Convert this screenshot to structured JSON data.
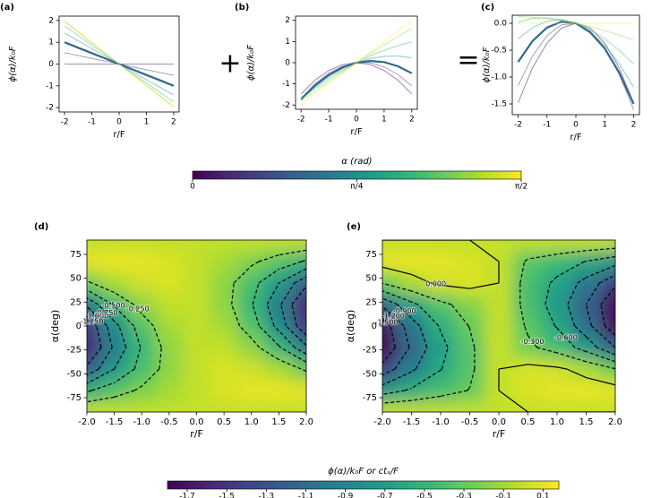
{
  "operators": [
    "+",
    "="
  ],
  "chart_data": [
    {
      "type": "line",
      "panel_label": "(a)",
      "x_label": "r/F",
      "y_label": "ϕ(α)/k₀F",
      "x": [
        -2,
        -1.5,
        -1,
        -0.5,
        0,
        0.5,
        1,
        1.5,
        2
      ],
      "xlim": [
        -2.2,
        2.2
      ],
      "xticks": [
        -2,
        -1,
        0,
        1,
        2
      ],
      "ylim": [
        -2.2,
        2.2
      ],
      "yticks": [
        -2,
        -1,
        0,
        1,
        2
      ],
      "series": [
        {
          "color": "#440154",
          "linewidth": 1,
          "values": [
            0,
            0,
            0,
            0,
            0,
            0,
            0,
            0,
            0
          ]
        },
        {
          "color": "#443983",
          "linewidth": 1,
          "values": [
            0.52,
            0.39,
            0.26,
            0.13,
            0,
            -0.13,
            -0.26,
            -0.39,
            -0.52
          ]
        },
        {
          "color": "#31688e",
          "linewidth": 2,
          "values": [
            1,
            0.75,
            0.5,
            0.25,
            0,
            -0.25,
            -0.5,
            -0.75,
            -1
          ]
        },
        {
          "color": "#21918c",
          "linewidth": 1,
          "values": [
            1.42,
            1.07,
            0.71,
            0.36,
            0,
            -0.36,
            -0.71,
            -1.07,
            -1.42
          ]
        },
        {
          "color": "#35b779",
          "linewidth": 1,
          "values": [
            1.74,
            1.31,
            0.87,
            0.44,
            0,
            -0.44,
            -0.87,
            -1.31,
            -1.74
          ]
        },
        {
          "color": "#90d743",
          "linewidth": 1,
          "values": [
            1.94,
            1.46,
            0.97,
            0.49,
            0,
            -0.49,
            -0.97,
            -1.46,
            -1.94
          ]
        },
        {
          "color": "#fde725",
          "linewidth": 1,
          "values": [
            2,
            1.5,
            1,
            0.5,
            0,
            -0.5,
            -1,
            -1.5,
            -2
          ]
        }
      ]
    },
    {
      "type": "line",
      "panel_label": "(b)",
      "x_label": "r/F",
      "y_label": "ϕ(α)/k₀F",
      "x": [
        -2,
        -1.5,
        -1,
        -0.5,
        0,
        0.5,
        1,
        1.5,
        2
      ],
      "xlim": [
        -2.2,
        2.2
      ],
      "xticks": [
        -2,
        -1,
        0,
        1,
        2
      ],
      "ylim": [
        -2.2,
        2.2
      ],
      "yticks": [
        -2,
        -1,
        0,
        1,
        2
      ],
      "series": [
        {
          "color": "#440154",
          "linewidth": 1,
          "values": [
            -1.48,
            -0.83,
            -0.37,
            -0.09,
            0,
            -0.09,
            -0.37,
            -0.83,
            -1.48
          ]
        },
        {
          "color": "#443983",
          "linewidth": 1,
          "values": [
            -1.68,
            -1.0,
            -0.49,
            -0.16,
            0,
            -0.01,
            -0.2,
            -0.56,
            -1.09
          ]
        },
        {
          "color": "#31688e",
          "linewidth": 2,
          "values": [
            -1.72,
            -1.08,
            -0.58,
            -0.22,
            0,
            0.08,
            0.03,
            -0.17,
            -0.5
          ]
        },
        {
          "color": "#21918c",
          "linewidth": 1,
          "values": [
            -1.71,
            -1.15,
            -0.67,
            -0.29,
            0,
            0.2,
            0.3,
            0.32,
            0.23
          ]
        },
        {
          "color": "#35b779",
          "linewidth": 1,
          "values": [
            -1.72,
            -1.22,
            -0.77,
            -0.37,
            0,
            0.32,
            0.58,
            0.81,
            0.98
          ]
        },
        {
          "color": "#90d743",
          "linewidth": 1,
          "values": [
            -1.81,
            -1.35,
            -0.88,
            -0.44,
            0,
            0.43,
            0.83,
            1.24,
            1.62
          ]
        },
        {
          "color": "#fde725",
          "linewidth": 1,
          "values": [
            -2,
            -1.5,
            -1,
            -0.5,
            0,
            0.5,
            1,
            1.5,
            2
          ]
        }
      ]
    },
    {
      "type": "line",
      "panel_label": "(c)",
      "x_label": "r/F",
      "y_label": "ϕ(α)/k₀F",
      "x": [
        -2,
        -1.5,
        -1,
        -0.5,
        0,
        0.5,
        1,
        1.5,
        2
      ],
      "xlim": [
        -2.2,
        2.2
      ],
      "xticks": [
        -2,
        -1,
        0,
        1,
        2
      ],
      "ylim": [
        -1.7,
        0.15
      ],
      "yticks": [
        {
          "value": -1.5,
          "label": "-1.5"
        },
        {
          "value": -1,
          "label": "-1.0"
        },
        {
          "value": -0.5,
          "label": "-0.5"
        },
        {
          "value": 0,
          "label": "0.0"
        }
      ],
      "series": [
        {
          "color": "#440154",
          "linewidth": 1,
          "values": [
            -1.48,
            -0.83,
            -0.37,
            -0.09,
            0,
            -0.09,
            -0.37,
            -0.83,
            -1.48
          ]
        },
        {
          "color": "#443983",
          "linewidth": 1,
          "values": [
            -1.16,
            -0.61,
            -0.23,
            -0.03,
            0,
            -0.14,
            -0.46,
            -0.95,
            -1.61
          ]
        },
        {
          "color": "#31688e",
          "linewidth": 2,
          "values": [
            -0.72,
            -0.33,
            -0.08,
            0.03,
            0,
            -0.17,
            -0.47,
            -0.92,
            -1.5
          ]
        },
        {
          "color": "#21918c",
          "linewidth": 1,
          "values": [
            -0.29,
            -0.08,
            0.04,
            0.07,
            0,
            -0.16,
            -0.41,
            -0.75,
            -1.19
          ]
        },
        {
          "color": "#35b779",
          "linewidth": 1,
          "values": [
            0.02,
            0.09,
            0.1,
            0.07,
            0,
            -0.12,
            -0.29,
            -0.5,
            -0.76
          ]
        },
        {
          "color": "#90d743",
          "linewidth": 1,
          "values": [
            0.13,
            0.11,
            0.09,
            0.05,
            0,
            -0.06,
            -0.14,
            -0.22,
            -0.32
          ]
        },
        {
          "color": "#fde725",
          "linewidth": 1,
          "values": [
            0,
            0,
            0,
            0,
            0,
            0,
            0,
            0,
            0
          ]
        }
      ]
    },
    {
      "type": "colorbar",
      "label": "α (rad)",
      "colormap": "viridis",
      "xlim": [
        0,
        1.571
      ],
      "xticks": [
        0,
        {
          "value": 0.785,
          "label": "π/4"
        },
        {
          "value": 1.571,
          "label": "π/2"
        }
      ]
    },
    {
      "type": "contour",
      "panel_label": "(d)",
      "x_label": "r/F",
      "y_label": "α(deg)",
      "colormap": "viridis",
      "zlim": [
        -1.8,
        0.18
      ],
      "x": [
        -2,
        -1.5,
        -1,
        -0.5,
        0,
        0.5,
        1,
        1.5,
        2
      ],
      "y": [
        -90,
        -67.5,
        -45,
        -22.5,
        0,
        22.5,
        45,
        67.5,
        90
      ],
      "xlim": [
        -2,
        2
      ],
      "ylim": [
        -90,
        90
      ],
      "xticks": [
        {
          "value": -2,
          "label": "-2.0"
        },
        {
          "value": -1.5,
          "label": "-1.5"
        },
        {
          "value": -1,
          "label": "-1.0"
        },
        {
          "value": -0.5,
          "label": "-0.5"
        },
        {
          "value": 0,
          "label": "0.0"
        },
        {
          "value": 0.5,
          "label": "0.5"
        },
        {
          "value": 1,
          "label": "1.0"
        },
        {
          "value": 1.5,
          "label": "1.5"
        },
        {
          "value": 2,
          "label": "2.0"
        }
      ],
      "yticks": [
        -75,
        -50,
        -25,
        0,
        25,
        50,
        75
      ],
      "z": [
        [
          0,
          0,
          0,
          0,
          0,
          0,
          0,
          0,
          0
        ],
        [
          -0.53,
          -0.36,
          -0.21,
          -0.09,
          0,
          0.07,
          0.11,
          0.12,
          0.1
        ],
        [
          -1.19,
          -0.75,
          -0.41,
          -0.16,
          0,
          0.07,
          0.04,
          -0.08,
          -0.29
        ],
        [
          -1.58,
          -0.95,
          -0.48,
          -0.16,
          0,
          0,
          -0.16,
          -0.47,
          -0.95
        ],
        [
          -1.48,
          -0.83,
          -0.37,
          -0.09,
          0,
          -0.09,
          -0.37,
          -0.83,
          -1.48
        ],
        [
          -0.95,
          -0.47,
          -0.16,
          0,
          0,
          -0.16,
          -0.48,
          -0.95,
          -1.58
        ],
        [
          -0.29,
          -0.08,
          0.04,
          0.07,
          0,
          -0.16,
          -0.41,
          -0.75,
          -1.19
        ],
        [
          0.1,
          0.12,
          0.11,
          0.07,
          0,
          -0.09,
          -0.21,
          -0.36,
          -0.53
        ],
        [
          0,
          0,
          0,
          0,
          0,
          0,
          0,
          0,
          0
        ]
      ],
      "contours": [
        {
          "value": -0.25,
          "label": "-0.250"
        },
        {
          "value": -0.5,
          "label": "-0.500"
        },
        {
          "value": -0.75,
          "label": "-0.750"
        },
        {
          "value": -1,
          "label": "-1.000"
        },
        {
          "value": -1.25,
          "label": "-1.250"
        }
      ]
    },
    {
      "type": "contour",
      "panel_label": "(e)",
      "x_label": "r/F",
      "y_label": "α(deg)",
      "colormap": "viridis",
      "zlim": [
        -1.8,
        0.18
      ],
      "x": [
        -2,
        -1.5,
        -1,
        -0.5,
        0,
        0.5,
        1,
        1.5,
        2
      ],
      "y": [
        -90,
        -67.5,
        -45,
        -22.5,
        0,
        22.5,
        45,
        67.5,
        90
      ],
      "xlim": [
        -2,
        2
      ],
      "ylim": [
        -90,
        90
      ],
      "xticks": [
        {
          "value": -2,
          "label": "-2.0"
        },
        {
          "value": -1.5,
          "label": "-1.5"
        },
        {
          "value": -1,
          "label": "-1.0"
        },
        {
          "value": -0.5,
          "label": "-0.5"
        },
        {
          "value": 0,
          "label": "0.0"
        },
        {
          "value": 0.5,
          "label": "0.5"
        },
        {
          "value": 1,
          "label": "1.0"
        },
        {
          "value": 1.5,
          "label": "1.5"
        },
        {
          "value": 2,
          "label": "2.0"
        }
      ],
      "yticks": [
        -75,
        -50,
        -25,
        0,
        25,
        50,
        75
      ],
      "z": [
        [
          0,
          0,
          0,
          0,
          0,
          0,
          0,
          0,
          0
        ],
        [
          -0.73,
          -0.56,
          -0.41,
          -0.29,
          0,
          0.07,
          0.11,
          0.12,
          0.1
        ],
        [
          -1.39,
          -0.95,
          -0.61,
          -0.36,
          0,
          0.07,
          0.04,
          -0.08,
          -0.29
        ],
        [
          -1.78,
          -1.15,
          -0.68,
          -0.36,
          0,
          -0.25,
          -0.41,
          -0.72,
          -1.2
        ],
        [
          -1.68,
          -1.03,
          -0.57,
          -0.29,
          0,
          -0.34,
          -0.62,
          -1.08,
          -1.73
        ],
        [
          -1.15,
          -0.67,
          -0.36,
          -0.2,
          0,
          -0.41,
          -0.73,
          -1.2,
          -1.79
        ],
        [
          -0.29,
          -0.08,
          0.04,
          0.07,
          0,
          -0.41,
          -0.66,
          -1.0,
          -1.44
        ],
        [
          0.1,
          0.12,
          0.11,
          0.07,
          0,
          -0.34,
          -0.46,
          -0.61,
          -0.78
        ],
        [
          0,
          0,
          0,
          0,
          0,
          0,
          0,
          0,
          0
        ]
      ],
      "contours": [
        {
          "value": 0,
          "label": "0.000"
        },
        {
          "value": -0.3,
          "label": "-0.300"
        },
        {
          "value": -0.6,
          "label": "-0.600"
        },
        {
          "value": -0.9,
          "label": "-0.900"
        },
        {
          "value": -1.2,
          "label": "-1.200"
        },
        {
          "value": -1.5,
          "label": "-1.500"
        }
      ]
    },
    {
      "type": "colorbar",
      "label": "ϕ(α)/k₀F    or    ctₛ/F",
      "colormap": "viridis",
      "xlim": [
        -1.8,
        0.18
      ],
      "xticks": [
        -1.7,
        -1.5,
        -1.3,
        -1.1,
        -0.9,
        -0.7,
        -0.5,
        -0.3,
        -0.1,
        0.1
      ]
    }
  ]
}
